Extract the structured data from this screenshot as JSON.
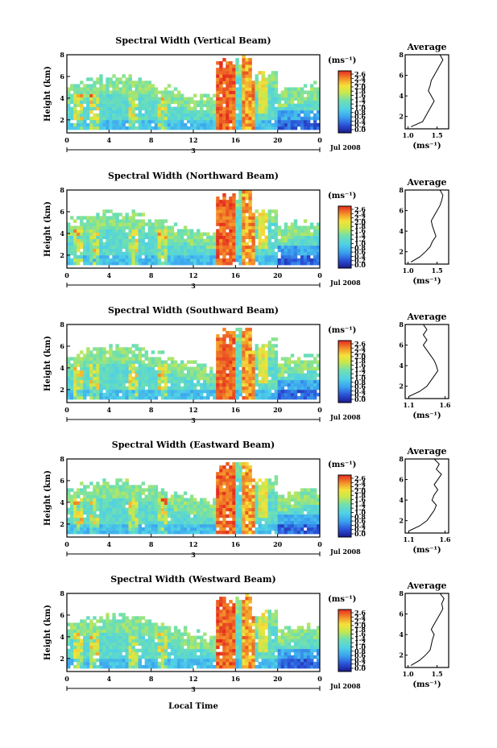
{
  "colorbar": {
    "unit": "(ms⁻¹)",
    "ticks": [
      "2.6",
      "2.4",
      "2.2",
      "2.0",
      "1.8",
      "1.6",
      "1.4",
      "1.2",
      "1.0",
      "0.8",
      "0.6",
      "0.4",
      "0.2",
      "0.0"
    ]
  },
  "common": {
    "date_label": "Jul 2008",
    "day_label": "3",
    "xlabel_bottom": "Local Time",
    "ylabel": "Height (km)",
    "avg_title": "Average",
    "avg_xlabel": "(ms⁻¹)"
  },
  "chart_data": [
    {
      "type": "heatmap",
      "title": "Spectral Width (Vertical Beam)",
      "x_ticks": [
        "0",
        "4",
        "8",
        "12",
        "16",
        "20",
        "0"
      ],
      "y_ticks": [
        "8",
        "6",
        "4",
        "2"
      ],
      "xlim": [
        0,
        24
      ],
      "ylim": [
        0.8,
        8
      ],
      "colorbar_range": [
        0.0,
        2.6
      ],
      "avg_profile": {
        "title": "Average",
        "x_ticks": [
          "1.0",
          "1.5"
        ],
        "xlim": [
          0.95,
          1.7
        ],
        "y_ticks": [
          "8",
          "6",
          "4",
          "2"
        ],
        "ylim": [
          0.8,
          8
        ],
        "height_km": [
          1.0,
          1.5,
          2.0,
          2.5,
          3.0,
          3.5,
          4.0,
          4.5,
          5.0,
          5.5,
          6.0,
          6.5,
          7.0,
          7.5,
          8.0
        ],
        "width_ms": [
          1.05,
          1.25,
          1.3,
          1.35,
          1.4,
          1.45,
          1.4,
          1.35,
          1.38,
          1.4,
          1.45,
          1.5,
          1.55,
          1.6,
          1.55
        ]
      }
    },
    {
      "type": "heatmap",
      "title": "Spectral Width (Northward Beam)",
      "x_ticks": [
        "0",
        "4",
        "8",
        "12",
        "16",
        "20",
        "0"
      ],
      "y_ticks": [
        "8",
        "6",
        "4",
        "2"
      ],
      "xlim": [
        0,
        24
      ],
      "ylim": [
        0.8,
        8
      ],
      "colorbar_range": [
        0.0,
        2.6
      ],
      "avg_profile": {
        "title": "Average",
        "x_ticks": [
          "1.0",
          "1.5"
        ],
        "xlim": [
          0.95,
          1.7
        ],
        "y_ticks": [
          "8",
          "6",
          "4",
          "2"
        ],
        "ylim": [
          0.8,
          8
        ],
        "height_km": [
          1.0,
          1.5,
          2.0,
          2.5,
          3.0,
          3.5,
          4.0,
          4.5,
          5.0,
          5.5,
          6.0,
          6.5,
          7.0,
          7.5,
          8.0
        ],
        "width_ms": [
          1.05,
          1.2,
          1.3,
          1.38,
          1.42,
          1.48,
          1.45,
          1.42,
          1.4,
          1.45,
          1.5,
          1.55,
          1.58,
          1.6,
          1.55
        ]
      }
    },
    {
      "type": "heatmap",
      "title": "Spectral Width (Southward Beam)",
      "x_ticks": [
        "0",
        "4",
        "8",
        "12",
        "16",
        "20",
        "0"
      ],
      "y_ticks": [
        "8",
        "6",
        "4",
        "2"
      ],
      "xlim": [
        0,
        24
      ],
      "ylim": [
        0.8,
        8
      ],
      "colorbar_range": [
        0.0,
        2.6
      ],
      "avg_profile": {
        "title": "Average",
        "x_ticks": [
          "1.1",
          "1.6"
        ],
        "xlim": [
          1.05,
          1.65
        ],
        "y_ticks": [
          "8",
          "6",
          "4",
          "2"
        ],
        "ylim": [
          0.8,
          8
        ],
        "height_km": [
          1.0,
          1.5,
          2.0,
          2.5,
          3.0,
          3.5,
          4.0,
          4.5,
          5.0,
          5.5,
          6.0,
          6.5,
          7.0,
          7.5,
          8.0
        ],
        "width_ms": [
          1.1,
          1.25,
          1.35,
          1.4,
          1.45,
          1.5,
          1.48,
          1.45,
          1.4,
          1.35,
          1.3,
          1.35,
          1.3,
          1.35,
          1.3
        ]
      }
    },
    {
      "type": "heatmap",
      "title": "Spectral Width (Eastward Beam)",
      "x_ticks": [
        "0",
        "4",
        "8",
        "12",
        "16",
        "20",
        "0"
      ],
      "y_ticks": [
        "8",
        "6",
        "4",
        "2"
      ],
      "xlim": [
        0,
        24
      ],
      "ylim": [
        0.8,
        8
      ],
      "colorbar_range": [
        0.0,
        2.6
      ],
      "avg_profile": {
        "title": "Average",
        "x_ticks": [
          "1.1",
          "1.6"
        ],
        "xlim": [
          1.05,
          1.65
        ],
        "y_ticks": [
          "8",
          "6",
          "4",
          "2"
        ],
        "ylim": [
          0.8,
          8
        ],
        "height_km": [
          1.0,
          1.5,
          2.0,
          2.5,
          3.0,
          3.5,
          4.0,
          4.5,
          5.0,
          5.5,
          6.0,
          6.5,
          7.0,
          7.5,
          8.0
        ],
        "width_ms": [
          1.1,
          1.25,
          1.35,
          1.4,
          1.45,
          1.48,
          1.42,
          1.45,
          1.5,
          1.45,
          1.5,
          1.55,
          1.48,
          1.52,
          1.45
        ]
      }
    },
    {
      "type": "heatmap",
      "title": "Spectral Width (Westward Beam)",
      "x_ticks": [
        "0",
        "4",
        "8",
        "12",
        "16",
        "20",
        "0"
      ],
      "y_ticks": [
        "8",
        "6",
        "4",
        "2"
      ],
      "xlim": [
        0,
        24
      ],
      "ylim": [
        0.8,
        8
      ],
      "colorbar_range": [
        0.0,
        2.6
      ],
      "avg_profile": {
        "title": "Average",
        "x_ticks": [
          "1.0",
          "1.5"
        ],
        "xlim": [
          0.95,
          1.7
        ],
        "y_ticks": [
          "8",
          "6",
          "4",
          "2"
        ],
        "ylim": [
          0.8,
          8
        ],
        "height_km": [
          1.0,
          1.5,
          2.0,
          2.5,
          3.0,
          3.5,
          4.0,
          4.5,
          5.0,
          5.5,
          6.0,
          6.5,
          7.0,
          7.5,
          8.0
        ],
        "width_ms": [
          1.05,
          1.2,
          1.3,
          1.38,
          1.4,
          1.42,
          1.45,
          1.4,
          1.45,
          1.5,
          1.55,
          1.6,
          1.58,
          1.62,
          1.55
        ]
      }
    }
  ]
}
